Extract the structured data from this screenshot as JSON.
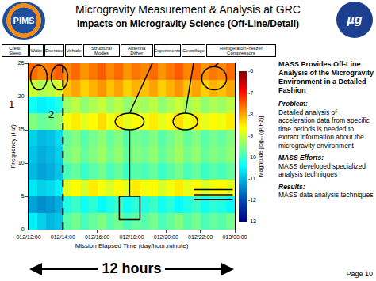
{
  "slide": {
    "logo_left": "PIMS",
    "title": "Microgravity Measurement & Analysis at GRC",
    "subtitle": "Impacts on Microgravity Science (Off-Line/Detail)",
    "logo_right": "µg",
    "panel": {
      "heading": "MASS Provides Off-Line Analysis of the Microgravity Environment in a Detailed Fashion",
      "sections": [
        {
          "label": "Problem:",
          "text": "Detailed analysis of acceleration data from specific time periods is needed to extract information about the microgravity environment"
        },
        {
          "label": "MASS Efforts:",
          "text": "MASS developed specialized analysis techniques"
        },
        {
          "label": "Results:",
          "text": "MASS data analysis techniques"
        }
      ]
    },
    "span_label": "12 hours",
    "page": "Page 10"
  },
  "chart_data": {
    "type": "heatmap",
    "x_label": "Mission Elapsed Time (day/hour:minute)",
    "y_label": "Frequency (Hz)",
    "colorbar_label": "Magnitude [log₁₀ (g²/Hz)]",
    "event_labels": [
      "Crew: Sleep",
      "Wake",
      "Exercise",
      "Vehicle",
      "Structural Modes",
      "Antenna Dither",
      "Experiments",
      "Centrifuge",
      "Refrigerator/Freezer Compressors"
    ],
    "annotations": [
      "1",
      "2"
    ],
    "boundary_x": 14,
    "x": [
      12.25,
      12.75,
      13.25,
      13.75,
      14.25,
      14.75,
      15.25,
      15.75,
      16.25,
      16.75,
      17.25,
      17.75,
      18.25,
      18.75,
      19.25,
      19.75,
      20.25,
      20.75,
      21.25,
      21.75,
      22.25,
      22.75,
      23.25,
      23.75
    ],
    "y": [
      1.25,
      3.75,
      6.25,
      8.75,
      11.25,
      13.75,
      16.25,
      18.75,
      21.25,
      23.75
    ],
    "z": [
      [
        -10.5,
        -10.8,
        -11,
        -10.9,
        -9.8,
        -9.6,
        -9.9,
        -9.7,
        -9.5,
        -9.8,
        -9.6,
        -9.9,
        -9.7,
        -9.8,
        -9.6,
        -9.9,
        -9.7,
        -9.5,
        -9.8,
        -9.6,
        -9.9,
        -9.7,
        -9.8,
        -9.6
      ],
      [
        -11.2,
        -11.4,
        -11.3,
        -11.1,
        -10.2,
        -10,
        -10.3,
        -10.1,
        -10.4,
        -10.2,
        -10,
        -10.3,
        -10.1,
        -10.2,
        -10,
        -10.3,
        -10.1,
        -10.4,
        -10.2,
        -10,
        -10.3,
        -10.1,
        -10.2,
        -10.4
      ],
      [
        -10.6,
        -10.8,
        -10.7,
        -10.5,
        -8.8,
        -8.6,
        -8.9,
        -8.5,
        -8.7,
        -8.9,
        -8.6,
        -8.8,
        -8.5,
        -8.7,
        -8.6,
        -8.9,
        -8.7,
        -8.5,
        -8.8,
        -8.6,
        -8.9,
        -8.7,
        -8.6,
        -8.8
      ],
      [
        -11,
        -11.2,
        -11.1,
        -10.9,
        -9.9,
        -9.7,
        -10,
        -9.8,
        -9.6,
        -9.9,
        -9.7,
        -10,
        -9.8,
        -9.9,
        -9.7,
        -10,
        -9.8,
        -9.6,
        -9.9,
        -9.7,
        -10,
        -9.8,
        -9.9,
        -9.7
      ],
      [
        -10.9,
        -11.1,
        -11,
        -10.8,
        -9.6,
        -9.4,
        -9.7,
        -9.5,
        -9.3,
        -9.6,
        -9.4,
        -9.7,
        -9.5,
        -9.6,
        -9.4,
        -9.7,
        -9.5,
        -9.3,
        -9.6,
        -9.4,
        -9.7,
        -9.5,
        -9.6,
        -9.4
      ],
      [
        -10.8,
        -11,
        -10.9,
        -10.7,
        -9.7,
        -9.5,
        -9.8,
        -9.6,
        -9.4,
        -9.7,
        -9.5,
        -9.8,
        -9.6,
        -9.7,
        -9.5,
        -9.8,
        -9.6,
        -9.4,
        -9.7,
        -9.5,
        -9.8,
        -9.6,
        -9.7,
        -9.5
      ],
      [
        -9.5,
        -9.7,
        -9.6,
        -9.4,
        -8.7,
        -8.5,
        -8.8,
        -8.6,
        -8.4,
        -8.7,
        -8.5,
        -8.8,
        -8.6,
        -8.7,
        -8.5,
        -8.8,
        -8.6,
        -8.4,
        -8.7,
        -8.5,
        -8.8,
        -8.6,
        -8.7,
        -8.5
      ],
      [
        -10.3,
        -10.5,
        -10.4,
        -10.2,
        -9.3,
        -9.1,
        -9.4,
        -9.2,
        -9,
        -9.3,
        -9.1,
        -9.4,
        -9.2,
        -9.3,
        -9.1,
        -9.4,
        -9.2,
        -9,
        -9.3,
        -9.1,
        -9.4,
        -9.2,
        -9.3,
        -9.1
      ],
      [
        -9,
        -9.2,
        -9.1,
        -8.9,
        -8.2,
        -8,
        -8.3,
        -8.1,
        -7.9,
        -8.2,
        -8,
        -8.3,
        -8.1,
        -8.2,
        -8,
        -8.3,
        -8.1,
        -7.9,
        -8.2,
        -8,
        -8.3,
        -8.1,
        -8.2,
        -8
      ],
      [
        -7.6,
        -7.8,
        -7.7,
        -7.5,
        -7.8,
        -7.6,
        -7.9,
        -7.7,
        -7.5,
        -7.8,
        -7.6,
        -7.9,
        -7.7,
        -7.8,
        -7.6,
        -7.9,
        -7.7,
        -7.5,
        -7.8,
        -7.6,
        -7.9,
        -7.7,
        -7.8,
        -7.6
      ]
    ],
    "xlim": [
      12,
      24
    ],
    "xticks": [
      {
        "value": 12,
        "label": "012/12:00"
      },
      {
        "value": 14,
        "label": "012/14:00"
      },
      {
        "value": 16,
        "label": "012/16:00"
      },
      {
        "value": 18,
        "label": "012/18:00"
      },
      {
        "value": 20,
        "label": "012/20:00"
      },
      {
        "value": 22,
        "label": "012/22:00"
      },
      {
        "value": 24,
        "label": "013/00:00"
      }
    ],
    "ylim": [
      0,
      25
    ],
    "yticks": [
      0,
      5,
      10,
      15,
      20,
      25
    ],
    "zlim": [
      -13,
      -6
    ],
    "zticks": [
      -6,
      -7,
      -8,
      -9,
      -10,
      -11,
      -12,
      -13
    ]
  }
}
